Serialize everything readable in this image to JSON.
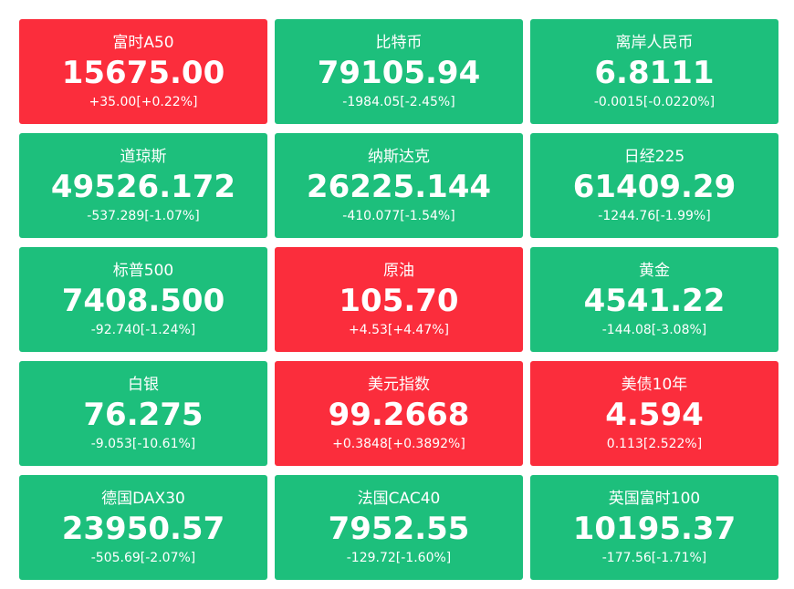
{
  "tiles": [
    {
      "name": "富时A50",
      "price": "15675.00",
      "change": "+35.00[+0.22%]",
      "color": "#fb2d3c"
    },
    {
      "name": "比特币",
      "price": "79105.94",
      "change": "-1984.05[-2.45%]",
      "color": "#1dbf7c"
    },
    {
      "name": "离岸人民币",
      "price": "6.8111",
      "change": "-0.0015[-0.0220%]",
      "color": "#1dbf7c"
    },
    {
      "name": "道琼斯",
      "price": "49526.172",
      "change": "-537.289[-1.07%]",
      "color": "#1dbf7c"
    },
    {
      "name": "纳斯达克",
      "price": "26225.144",
      "change": "-410.077[-1.54%]",
      "color": "#1dbf7c"
    },
    {
      "name": "日经225",
      "price": "61409.29",
      "change": "-1244.76[-1.99%]",
      "color": "#1dbf7c"
    },
    {
      "name": "标普500",
      "price": "7408.500",
      "change": "-92.740[-1.24%]",
      "color": "#1dbf7c"
    },
    {
      "name": "原油",
      "price": "105.70",
      "change": "+4.53[+4.47%]",
      "color": "#fb2d3c"
    },
    {
      "name": "黄金",
      "price": "4541.22",
      "change": "-144.08[-3.08%]",
      "color": "#1dbf7c"
    },
    {
      "name": "白银",
      "price": "76.275",
      "change": "-9.053[-10.61%]",
      "color": "#1dbf7c"
    },
    {
      "name": "美元指数",
      "price": "99.2668",
      "change": "+0.3848[+0.3892%]",
      "color": "#fb2d3c"
    },
    {
      "name": "美债10年",
      "price": "4.594",
      "change": "0.113[2.522%]",
      "color": "#fb2d3c"
    },
    {
      "name": "德国DAX30",
      "price": "23950.57",
      "change": "-505.69[-2.07%]",
      "color": "#1dbf7c"
    },
    {
      "name": "法国CAC40",
      "price": "7952.55",
      "change": "-129.72[-1.60%]",
      "color": "#1dbf7c"
    },
    {
      "name": "英国富时100",
      "price": "10195.37",
      "change": "-177.56[-1.71%]",
      "color": "#1dbf7c"
    }
  ]
}
